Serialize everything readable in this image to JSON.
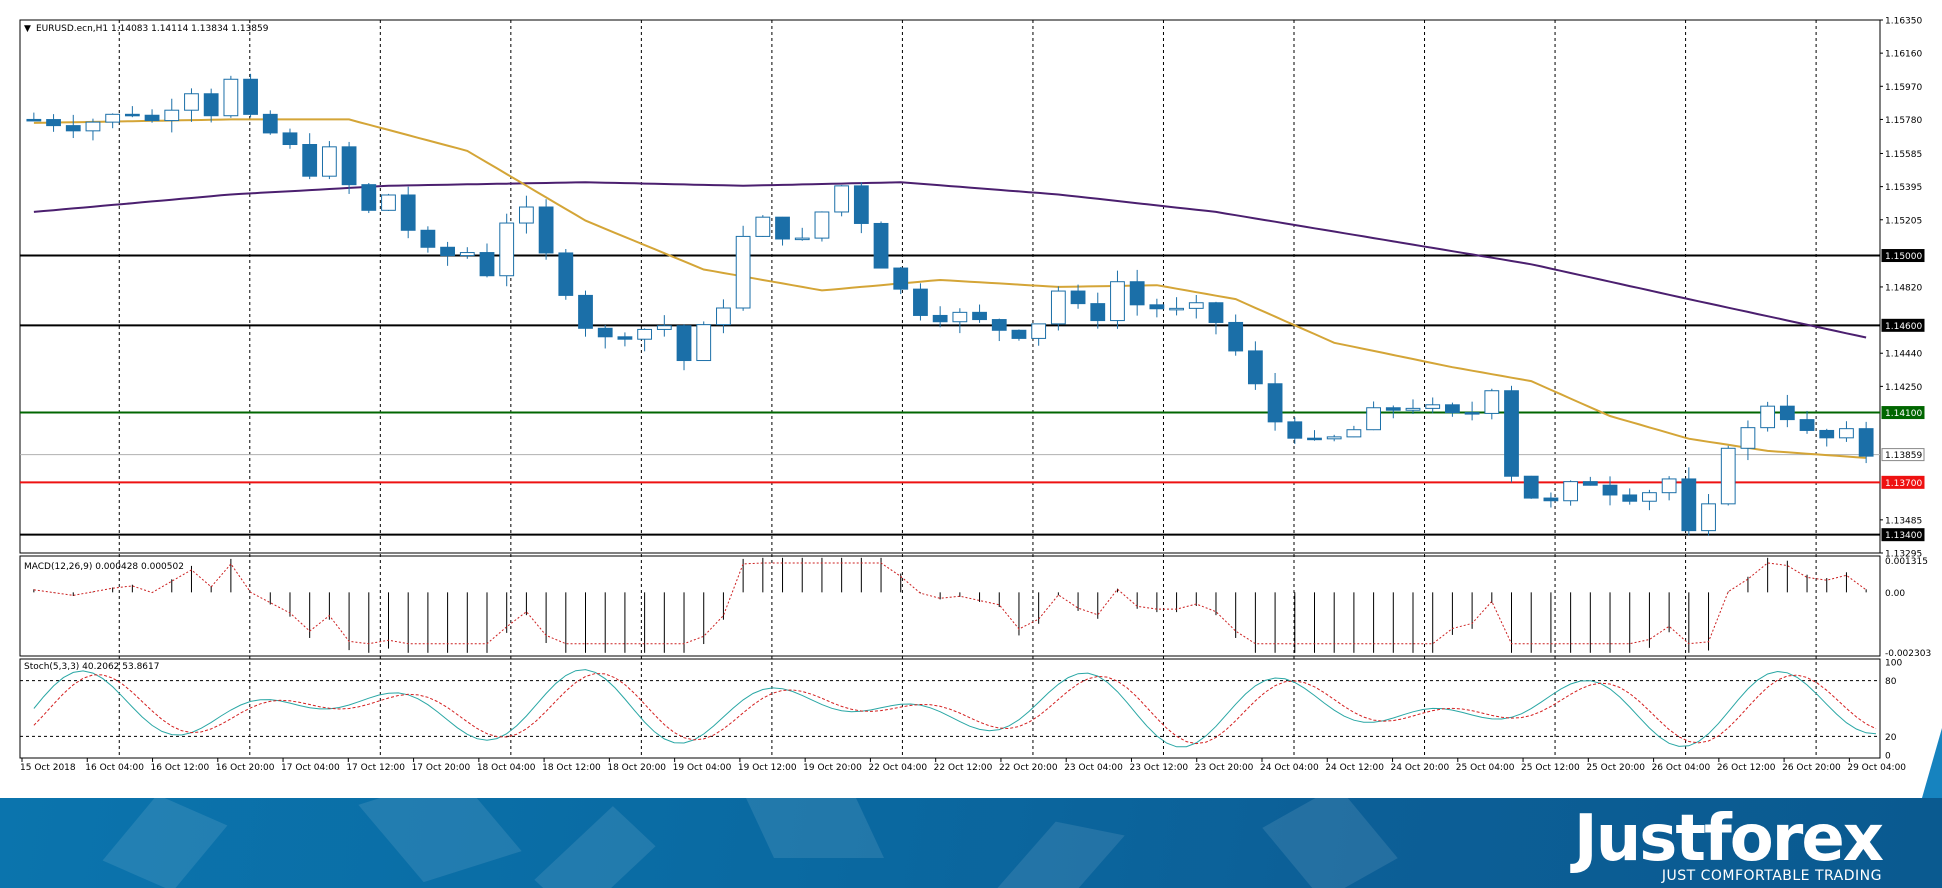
{
  "symbol_header": "EURUSD.ecn,H1  1.14083 1.14114 1.13834 1.13859",
  "macd_header": "MACD(12,26,9) 0.000428 0.000502",
  "stoch_header": "Stoch(5,3,3) 40.2062 53.8617",
  "colors": {
    "bull_candle": "#ffffff",
    "bear_candle": "#1b6fa8",
    "candle_outline": "#1b6fa8",
    "ma_fast": "#d4a537",
    "ma_slow": "#4b1f6f",
    "stoch_main": "#2aa7a5",
    "stoch_signal": "#d42020",
    "macd_signal": "#cc2020",
    "level_green": "#006600",
    "level_red": "#ee1111",
    "level_black": "#000000",
    "banner": "#0b6aa3"
  },
  "banner": {
    "logo_text": "Justforex",
    "tagline": "JUST COMFORTABLE TRADING"
  },
  "chart_data": [
    {
      "type": "candlestick",
      "symbol": "EURUSD.ecn",
      "timeframe": "H1",
      "ohlc_last": {
        "open": 1.14083,
        "high": 1.14114,
        "low": 1.13834,
        "close": 1.13859
      },
      "ylim": [
        1.13295,
        1.1635
      ],
      "y_ticks": [
        "1.16350",
        "1.16160",
        "1.15970",
        "1.15780",
        "1.15585",
        "1.15395",
        "1.15205",
        "1.15000",
        "1.14820",
        "1.14600",
        "1.14440",
        "1.14250",
        "1.14100",
        "1.13859",
        "1.13700",
        "1.13485",
        "1.13400",
        "1.13295"
      ],
      "x_tick_labels": [
        "15 Oct 2018",
        "16 Oct 04:00",
        "16 Oct 12:00",
        "16 Oct 20:00",
        "17 Oct 04:00",
        "17 Oct 12:00",
        "17 Oct 20:00",
        "18 Oct 04:00",
        "18 Oct 12:00",
        "18 Oct 20:00",
        "19 Oct 04:00",
        "19 Oct 12:00",
        "19 Oct 20:00",
        "22 Oct 04:00",
        "22 Oct 12:00",
        "22 Oct 20:00",
        "23 Oct 04:00",
        "23 Oct 12:00",
        "23 Oct 20:00",
        "24 Oct 04:00",
        "24 Oct 12:00",
        "24 Oct 20:00",
        "25 Oct 04:00",
        "25 Oct 12:00",
        "25 Oct 20:00",
        "26 Oct 04:00",
        "26 Oct 12:00",
        "26 Oct 20:00",
        "29 Oct 04:00"
      ],
      "horizontal_levels": [
        {
          "value": 1.15,
          "label": "1.15000",
          "color": "black"
        },
        {
          "value": 1.146,
          "label": "1.14600",
          "color": "black"
        },
        {
          "value": 1.141,
          "label": "1.14100",
          "color": "green"
        },
        {
          "value": 1.13859,
          "label": "1.13859",
          "color": "gray"
        },
        {
          "value": 1.137,
          "label": "1.13700",
          "color": "red"
        },
        {
          "value": 1.134,
          "label": "1.13400",
          "color": "black"
        }
      ],
      "price_path": [
        [
          0,
          1.1578
        ],
        [
          2,
          1.1574
        ],
        [
          4,
          1.158
        ],
        [
          5,
          1.1582
        ],
        [
          6,
          1.1577
        ],
        [
          7,
          1.1586
        ],
        [
          8,
          1.1595
        ],
        [
          9,
          1.1582
        ],
        [
          10,
          1.16
        ],
        [
          11,
          1.1578
        ],
        [
          12,
          1.157
        ],
        [
          13,
          1.1562
        ],
        [
          14,
          1.1548
        ],
        [
          15,
          1.156
        ],
        [
          16,
          1.154
        ],
        [
          17,
          1.1525
        ],
        [
          18,
          1.1535
        ],
        [
          19,
          1.1515
        ],
        [
          20,
          1.1502
        ],
        [
          21,
          1.15
        ],
        [
          22,
          1.1502
        ],
        [
          23,
          1.149
        ],
        [
          24,
          1.152
        ],
        [
          25,
          1.1525
        ],
        [
          26,
          1.15
        ],
        [
          27,
          1.148
        ],
        [
          28,
          1.146
        ],
        [
          29,
          1.1452
        ],
        [
          30,
          1.1455
        ],
        [
          31,
          1.1458
        ],
        [
          32,
          1.146
        ],
        [
          33,
          1.144
        ],
        [
          34,
          1.1458
        ],
        [
          35,
          1.1472
        ],
        [
          36,
          1.151
        ],
        [
          37,
          1.152
        ],
        [
          38,
          1.1512
        ],
        [
          39,
          1.1508
        ],
        [
          40,
          1.1525
        ],
        [
          41,
          1.154
        ],
        [
          42,
          1.152
        ],
        [
          43,
          1.1495
        ],
        [
          44,
          1.148
        ],
        [
          45,
          1.1468
        ],
        [
          46,
          1.1465
        ],
        [
          47,
          1.1466
        ],
        [
          48,
          1.1462
        ],
        [
          49,
          1.1458
        ],
        [
          50,
          1.1455
        ],
        [
          51,
          1.1462
        ],
        [
          52,
          1.148
        ],
        [
          53,
          1.147
        ],
        [
          54,
          1.1465
        ],
        [
          55,
          1.1485
        ],
        [
          56,
          1.1472
        ],
        [
          57,
          1.147
        ],
        [
          58,
          1.1468
        ],
        [
          59,
          1.147
        ],
        [
          60,
          1.1462
        ],
        [
          61,
          1.1445
        ],
        [
          62,
          1.1425
        ],
        [
          63,
          1.1405
        ],
        [
          64,
          1.1398
        ],
        [
          65,
          1.1392
        ],
        [
          66,
          1.1395
        ],
        [
          67,
          1.14
        ],
        [
          68,
          1.141
        ],
        [
          69,
          1.1412
        ],
        [
          70,
          1.1414
        ],
        [
          71,
          1.1412
        ],
        [
          72,
          1.1408
        ],
        [
          73,
          1.141
        ],
        [
          74,
          1.1425
        ],
        [
          75,
          1.1375
        ],
        [
          76,
          1.1362
        ],
        [
          77,
          1.1358
        ],
        [
          78,
          1.1368
        ],
        [
          79,
          1.137
        ],
        [
          80,
          1.1365
        ],
        [
          81,
          1.1362
        ],
        [
          82,
          1.1365
        ],
        [
          83,
          1.1372
        ],
        [
          84,
          1.134
        ],
        [
          85,
          1.1355
        ],
        [
          86,
          1.1392
        ],
        [
          87,
          1.14
        ],
        [
          88,
          1.1415
        ],
        [
          89,
          1.1408
        ],
        [
          90,
          1.1398
        ],
        [
          91,
          1.1395
        ],
        [
          92,
          1.1398
        ],
        [
          93,
          1.1386
        ]
      ],
      "ma_fast_path": [
        [
          0,
          1.1576
        ],
        [
          10,
          1.1578
        ],
        [
          16,
          1.1578
        ],
        [
          22,
          1.156
        ],
        [
          28,
          1.152
        ],
        [
          34,
          1.1492
        ],
        [
          40,
          1.148
        ],
        [
          46,
          1.1486
        ],
        [
          52,
          1.1482
        ],
        [
          57,
          1.1483
        ],
        [
          61,
          1.1475
        ],
        [
          66,
          1.145
        ],
        [
          72,
          1.1436
        ],
        [
          76,
          1.1428
        ],
        [
          80,
          1.1408
        ],
        [
          84,
          1.1395
        ],
        [
          88,
          1.1388
        ],
        [
          93,
          1.1384
        ]
      ],
      "ma_slow_path": [
        [
          0,
          1.1525
        ],
        [
          10,
          1.1535
        ],
        [
          18,
          1.154
        ],
        [
          28,
          1.1542
        ],
        [
          36,
          1.154
        ],
        [
          44,
          1.1542
        ],
        [
          52,
          1.1535
        ],
        [
          60,
          1.1525
        ],
        [
          68,
          1.151
        ],
        [
          76,
          1.1495
        ],
        [
          84,
          1.1475
        ],
        [
          93,
          1.1453
        ]
      ]
    },
    {
      "type": "histogram",
      "name": "MACD(12,26,9)",
      "values_header": "0.000428 0.000502",
      "ylim": [
        -0.002303,
        0.001315
      ],
      "y_ticks": [
        "0.001315",
        "0.00",
        "-0.002303"
      ]
    },
    {
      "type": "line",
      "name": "Stoch(5,3,3)",
      "values_header": "40.2062 53.8617",
      "ylim": [
        0,
        100
      ],
      "y_ticks": [
        "100",
        "80",
        "20",
        "0"
      ],
      "levels": [
        80,
        20
      ]
    }
  ]
}
